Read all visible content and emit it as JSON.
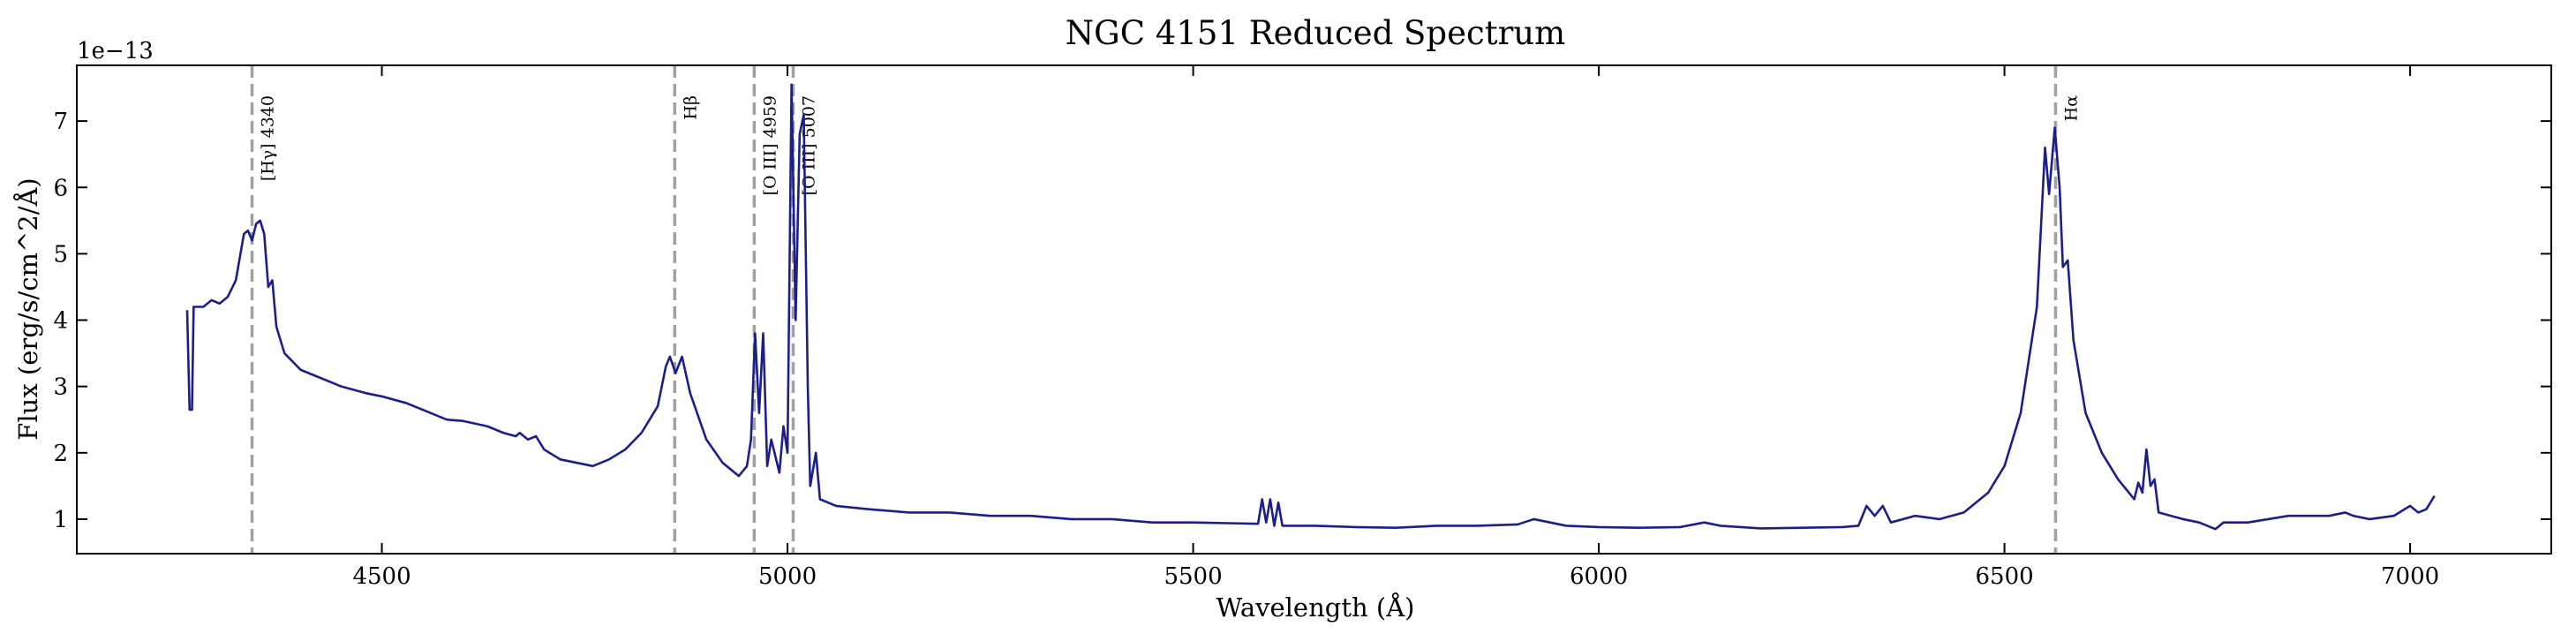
{
  "chart_data": {
    "type": "line",
    "title": "NGC 4151 Reduced Spectrum",
    "x_label": "Wavelength (Å)",
    "y_label": "Flux (erg/s/cm^2/Å)",
    "y_offset_label": "1e−13",
    "color": "#1c1f8a",
    "xlim": [
      4124,
      7174
    ],
    "ylim": [
      0.48,
      7.84
    ],
    "xticks": [
      4500,
      5000,
      5500,
      6000,
      6500,
      7000
    ],
    "yticks": [
      1,
      2,
      3,
      4,
      5,
      6,
      7
    ],
    "reference_lines": {
      "color": "#a0a0a0",
      "lines": [
        {
          "x": 4340,
          "label": "[Hγ] 4340"
        },
        {
          "x": 4861,
          "label": "Hβ"
        },
        {
          "x": 4959,
          "label": "[O III] 4959"
        },
        {
          "x": 5007,
          "label": "[O III] 5007"
        },
        {
          "x": 6563,
          "label": "Hα"
        }
      ]
    },
    "x": [
      4260,
      4263,
      4266,
      4268,
      4280,
      4290,
      4300,
      4310,
      4320,
      4330,
      4335,
      4340,
      4345,
      4350,
      4355,
      4360,
      4365,
      4370,
      4380,
      4400,
      4420,
      4450,
      4480,
      4500,
      4530,
      4550,
      4580,
      4600,
      4630,
      4650,
      4665,
      4670,
      4680,
      4690,
      4700,
      4720,
      4740,
      4760,
      4780,
      4800,
      4820,
      4840,
      4850,
      4855,
      4862,
      4870,
      4880,
      4900,
      4920,
      4940,
      4950,
      4955,
      4960,
      4965,
      4970,
      4975,
      4980,
      4990,
      4995,
      5000,
      5005,
      5010,
      5015,
      5020,
      5025,
      5028,
      5035,
      5040,
      5060,
      5100,
      5150,
      5200,
      5250,
      5300,
      5350,
      5400,
      5450,
      5500,
      5580,
      5585,
      5590,
      5595,
      5600,
      5605,
      5610,
      5650,
      5700,
      5750,
      5800,
      5850,
      5900,
      5920,
      5940,
      5960,
      6000,
      6050,
      6100,
      6130,
      6150,
      6200,
      6250,
      6300,
      6320,
      6330,
      6340,
      6350,
      6360,
      6390,
      6420,
      6450,
      6480,
      6500,
      6520,
      6540,
      6550,
      6555,
      6562,
      6568,
      6572,
      6578,
      6585,
      6600,
      6620,
      6640,
      6660,
      6665,
      6670,
      6675,
      6680,
      6685,
      6690,
      6720,
      6740,
      6760,
      6770,
      6800,
      6850,
      6900,
      6920,
      6930,
      6950,
      6980,
      7000,
      7010,
      7020,
      7030
    ],
    "values": [
      4.15,
      2.65,
      2.65,
      4.2,
      4.2,
      4.3,
      4.25,
      4.35,
      4.6,
      5.3,
      5.35,
      5.2,
      5.45,
      5.5,
      5.3,
      4.5,
      4.6,
      3.9,
      3.5,
      3.25,
      3.15,
      3.0,
      2.9,
      2.85,
      2.75,
      2.65,
      2.5,
      2.48,
      2.4,
      2.3,
      2.25,
      2.3,
      2.2,
      2.25,
      2.05,
      1.9,
      1.85,
      1.8,
      1.9,
      2.05,
      2.3,
      2.7,
      3.3,
      3.45,
      3.2,
      3.45,
      2.9,
      2.2,
      1.85,
      1.65,
      1.8,
      2.2,
      3.8,
      2.6,
      3.8,
      1.8,
      2.2,
      1.7,
      2.4,
      2.0,
      7.55,
      4.0,
      6.8,
      7.1,
      3.0,
      1.5,
      2.0,
      1.3,
      1.2,
      1.15,
      1.1,
      1.1,
      1.05,
      1.05,
      1.0,
      1.0,
      0.95,
      0.95,
      0.93,
      1.3,
      0.95,
      1.3,
      0.9,
      1.25,
      0.9,
      0.9,
      0.88,
      0.87,
      0.9,
      0.9,
      0.92,
      1.0,
      0.95,
      0.9,
      0.88,
      0.87,
      0.88,
      0.95,
      0.9,
      0.86,
      0.87,
      0.88,
      0.9,
      1.2,
      1.05,
      1.2,
      0.95,
      1.05,
      1.0,
      1.1,
      1.4,
      1.8,
      2.6,
      4.2,
      6.6,
      5.9,
      6.9,
      6.0,
      4.8,
      4.9,
      3.7,
      2.6,
      2.0,
      1.6,
      1.3,
      1.55,
      1.4,
      2.05,
      1.5,
      1.6,
      1.1,
      1.0,
      0.95,
      0.85,
      0.95,
      0.95,
      1.05,
      1.05,
      1.1,
      1.05,
      1.0,
      1.05,
      1.2,
      1.1,
      1.15,
      1.35
    ]
  }
}
